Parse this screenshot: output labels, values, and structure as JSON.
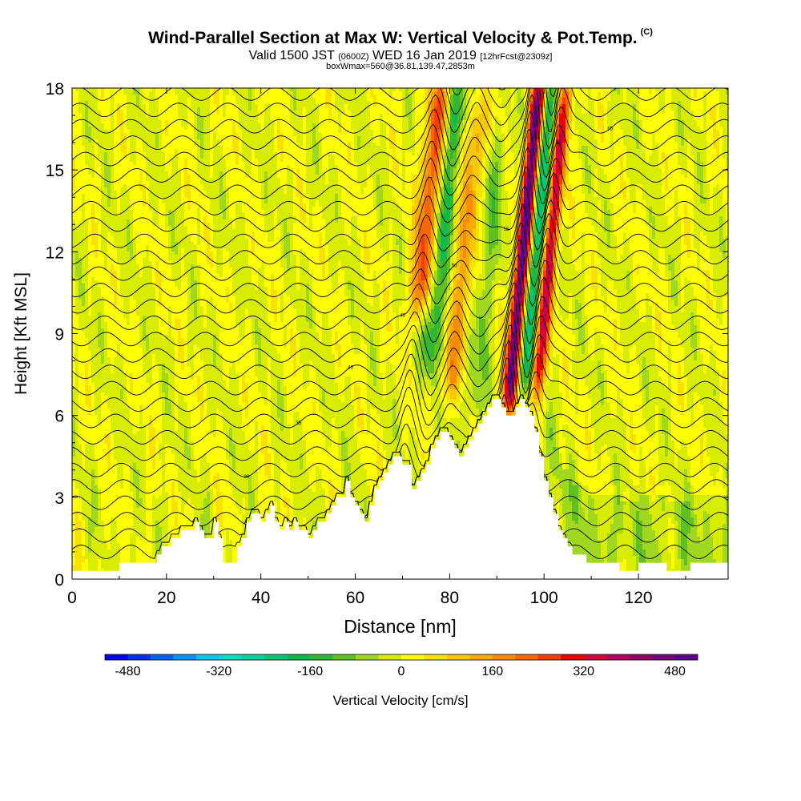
{
  "header": {
    "title": "Wind-Parallel Section at Max W: Vertical Velocity & Pot.Temp.",
    "copyright": "(C)",
    "valid_prefix": "Valid 1500 JST",
    "valid_utc": "(0600Z)",
    "valid_date": "WED 16 Jan 2019",
    "forecast": "[12hrFcst@2309z]",
    "box_info": "boxWmax=560@36.81,139.47,2853m"
  },
  "chart_data": {
    "type": "heatmap",
    "title": "Wind-Parallel Section at Max W: Vertical Velocity & Pot.Temp.",
    "xlabel": "Distance [nm]",
    "ylabel": "Height [Kft MSL]",
    "xlim": [
      0,
      139
    ],
    "ylim": [
      0,
      18
    ],
    "x_ticks": [
      0,
      20,
      40,
      60,
      80,
      100,
      120
    ],
    "y_ticks": [
      0,
      3,
      6,
      9,
      12,
      15,
      18
    ],
    "colorbar": {
      "label": "Vertical Velocity [cm/s]",
      "range": [
        -520,
        520
      ],
      "step": 40,
      "tick_values": [
        -480,
        -320,
        -160,
        0,
        160,
        320,
        480
      ],
      "tick_labels": [
        "-480",
        "-320",
        "-160",
        "0",
        "160",
        "320",
        "480"
      ],
      "colors": [
        "#0000f0",
        "#0030f0",
        "#0064f0",
        "#0096f0",
        "#00c8f0",
        "#00e0c0",
        "#00d496",
        "#00c878",
        "#10b850",
        "#30b830",
        "#60c020",
        "#a0d820",
        "#d8ec00",
        "#ffff00",
        "#f8e000",
        "#f8c800",
        "#f8aa00",
        "#f88c00",
        "#f86800",
        "#f83c00",
        "#f00000",
        "#d8003c",
        "#b4005a",
        "#960064",
        "#780078",
        "#5a008c"
      ]
    },
    "terrain_height_kft": [
      [
        0,
        0.3
      ],
      [
        9,
        0.3
      ],
      [
        10,
        0.6
      ],
      [
        17,
        0.6
      ],
      [
        18,
        0.9
      ],
      [
        19,
        1.2
      ],
      [
        21,
        1.5
      ],
      [
        23,
        1.8
      ],
      [
        25,
        1.8
      ],
      [
        26,
        2.1
      ],
      [
        27,
        1.8
      ],
      [
        28,
        1.5
      ],
      [
        29,
        1.5
      ],
      [
        30,
        2.1
      ],
      [
        31,
        1.5
      ],
      [
        32,
        0.6
      ],
      [
        34,
        0.6
      ],
      [
        35,
        1.2
      ],
      [
        36,
        1.5
      ],
      [
        37,
        2.1
      ],
      [
        38,
        2.4
      ],
      [
        39,
        2.4
      ],
      [
        40,
        2.1
      ],
      [
        41,
        2.4
      ],
      [
        42,
        2.7
      ],
      [
        43,
        2.1
      ],
      [
        44,
        1.8
      ],
      [
        45,
        2.1
      ],
      [
        46,
        1.8
      ],
      [
        47,
        2.1
      ],
      [
        48,
        1.8
      ],
      [
        50,
        1.5
      ],
      [
        51,
        1.8
      ],
      [
        52,
        2.1
      ],
      [
        54,
        2.4
      ],
      [
        55,
        2.7
      ],
      [
        56,
        3.0
      ],
      [
        57,
        3.0
      ],
      [
        58,
        3.6
      ],
      [
        59,
        3.0
      ],
      [
        60,
        2.7
      ],
      [
        61,
        2.4
      ],
      [
        62,
        2.1
      ],
      [
        63,
        2.7
      ],
      [
        64,
        3.3
      ],
      [
        65,
        3.6
      ],
      [
        66,
        3.9
      ],
      [
        67,
        4.2
      ],
      [
        68,
        4.5
      ],
      [
        69,
        4.5
      ],
      [
        70,
        4.2
      ],
      [
        72,
        3.3
      ],
      [
        73,
        3.6
      ],
      [
        74,
        3.9
      ],
      [
        75,
        4.2
      ],
      [
        76,
        4.8
      ],
      [
        77,
        5.1
      ],
      [
        78,
        5.4
      ],
      [
        79,
        5.4
      ],
      [
        80,
        5.1
      ],
      [
        81,
        4.8
      ],
      [
        82,
        4.5
      ],
      [
        83,
        4.8
      ],
      [
        84,
        5.1
      ],
      [
        85,
        5.4
      ],
      [
        86,
        5.7
      ],
      [
        87,
        6.0
      ],
      [
        88,
        6.3
      ],
      [
        89,
        6.6
      ],
      [
        90,
        6.6
      ],
      [
        91,
        6.3
      ],
      [
        92,
        6.0
      ],
      [
        93,
        6.0
      ],
      [
        94,
        6.3
      ],
      [
        95,
        6.6
      ],
      [
        96,
        6.3
      ],
      [
        97,
        6.0
      ],
      [
        98,
        5.4
      ],
      [
        99,
        4.5
      ],
      [
        100,
        3.6
      ],
      [
        101,
        3.0
      ],
      [
        102,
        2.4
      ],
      [
        103,
        1.8
      ],
      [
        104,
        1.5
      ],
      [
        105,
        1.2
      ],
      [
        106,
        0.9
      ],
      [
        108,
        0.9
      ],
      [
        109,
        0.6
      ],
      [
        115,
        0.6
      ],
      [
        116,
        0.3
      ],
      [
        119,
        0.3
      ],
      [
        120,
        0.6
      ],
      [
        125,
        0.6
      ],
      [
        126,
        0.3
      ],
      [
        130,
        0.3
      ],
      [
        131,
        0.6
      ],
      [
        139,
        0.6
      ]
    ],
    "updraft_bands": [
      {
        "center_nm": 72.5,
        "w_cm_s": 260,
        "height_range_kft": [
          10,
          18
        ]
      },
      {
        "center_nm": 81,
        "w_cm_s": 160,
        "height_range_kft": [
          7,
          17
        ]
      },
      {
        "center_nm": 93.5,
        "w_cm_s": 560,
        "height_range_kft": [
          6.5,
          18
        ]
      },
      {
        "center_nm": 99,
        "w_cm_s": 380,
        "height_range_kft": [
          7,
          18
        ]
      }
    ],
    "downdraft_bands": [
      {
        "center_nm": 76,
        "w_cm_s": -160,
        "height_range_kft": [
          8,
          18
        ]
      },
      {
        "center_nm": 86,
        "w_cm_s": -80,
        "height_range_kft": [
          6,
          16
        ]
      },
      {
        "center_nm": 96,
        "w_cm_s": -240,
        "height_range_kft": [
          7,
          18
        ]
      }
    ],
    "contour_labels": [
      "20",
      "25",
      "30",
      "35",
      "40",
      "45",
      "50",
      "55",
      "60",
      "65",
      "70",
      "75",
      "80",
      "85",
      "90",
      "95",
      "100"
    ],
    "grid": false
  }
}
